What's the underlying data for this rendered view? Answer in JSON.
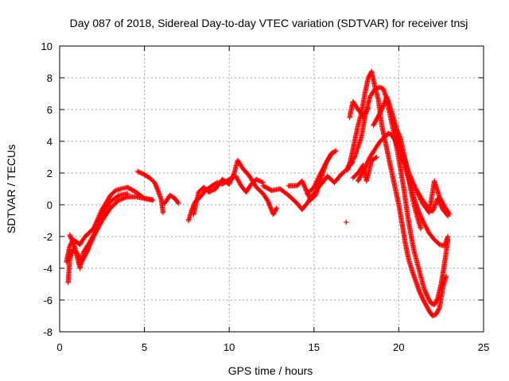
{
  "chart_data": {
    "type": "scatter",
    "title": "Day 087 of 2018, Sidereal Day-to-day VTEC variation (SDTVAR) for receiver tnsj",
    "xlabel": "GPS time / hours",
    "ylabel": "SDTVAR / TECUs",
    "xlim": [
      0,
      25
    ],
    "ylim": [
      -8,
      10
    ],
    "xticks": [
      0,
      5,
      10,
      15,
      20,
      25
    ],
    "yticks": [
      -8,
      -6,
      -4,
      -2,
      0,
      2,
      4,
      6,
      8,
      10
    ],
    "grid": true,
    "marker": "+",
    "series": [
      {
        "name": "SDTVAR",
        "color": "#ff0000",
        "tracks": [
          [
            [
              0.4,
              -3.6
            ],
            [
              0.6,
              -2.6
            ],
            [
              0.8,
              -2.2
            ],
            [
              1.2,
              -2.5
            ],
            [
              1.5,
              -2.0
            ],
            [
              2.0,
              -1.5
            ],
            [
              2.5,
              -0.3
            ],
            [
              3.0,
              0.6
            ],
            [
              3.3,
              0.9
            ],
            [
              3.6,
              1.0
            ],
            [
              4.0,
              1.1
            ],
            [
              4.5,
              0.8
            ],
            [
              5.0,
              0.4
            ],
            [
              5.5,
              0.3
            ]
          ],
          [
            [
              0.5,
              -4.9
            ],
            [
              0.6,
              -3.4
            ],
            [
              0.8,
              -2.8
            ],
            [
              1.0,
              -3.0
            ],
            [
              1.3,
              -3.6
            ],
            [
              1.6,
              -3.0
            ],
            [
              2.0,
              -2.0
            ],
            [
              2.5,
              -1.0
            ],
            [
              3.0,
              -0.2
            ],
            [
              3.5,
              0.3
            ],
            [
              4.0,
              0.5
            ],
            [
              4.5,
              0.5
            ],
            [
              5.0,
              0.4
            ],
            [
              5.5,
              0.3
            ]
          ],
          [
            [
              0.6,
              -1.9
            ],
            [
              0.9,
              -2.7
            ],
            [
              1.2,
              -4.0
            ],
            [
              1.4,
              -3.0
            ],
            [
              1.8,
              -2.3
            ],
            [
              2.2,
              -1.5
            ],
            [
              2.6,
              -0.4
            ],
            [
              3.0,
              0.2
            ],
            [
              3.5,
              0.6
            ],
            [
              4.0,
              0.7
            ]
          ],
          [
            [
              4.6,
              2.1
            ],
            [
              5.0,
              1.9
            ],
            [
              5.3,
              1.7
            ],
            [
              5.6,
              1.4
            ],
            [
              5.8,
              0.9
            ],
            [
              6.0,
              0.3
            ],
            [
              6.1,
              -0.5
            ]
          ],
          [
            [
              6.2,
              0.1
            ],
            [
              6.5,
              0.6
            ],
            [
              6.8,
              0.4
            ],
            [
              7.0,
              0.1
            ]
          ],
          [
            [
              7.6,
              -1.0
            ],
            [
              7.8,
              -0.3
            ],
            [
              8.0,
              0.2
            ],
            [
              8.3,
              0.5
            ],
            [
              8.6,
              0.9
            ],
            [
              9.0,
              1.2
            ],
            [
              9.3,
              1.4
            ],
            [
              9.6,
              1.3
            ],
            [
              10.0,
              1.6
            ],
            [
              10.4,
              1.8
            ],
            [
              10.7,
              1.2
            ],
            [
              11.0,
              0.8
            ],
            [
              11.3,
              1.3
            ],
            [
              11.6,
              1.6
            ],
            [
              12.0,
              1.4
            ]
          ],
          [
            [
              7.9,
              -0.6
            ],
            [
              8.2,
              0.8
            ],
            [
              8.5,
              1.1
            ],
            [
              8.8,
              0.8
            ],
            [
              9.2,
              1.0
            ],
            [
              9.6,
              1.6
            ],
            [
              10.0,
              1.3
            ],
            [
              10.3,
              2.0
            ],
            [
              10.5,
              2.8
            ],
            [
              10.8,
              2.3
            ],
            [
              11.2,
              1.8
            ],
            [
              11.6,
              1.1
            ],
            [
              12.0,
              0.7
            ],
            [
              12.3,
              0.2
            ],
            [
              12.6,
              -0.6
            ],
            [
              12.8,
              -0.2
            ]
          ],
          [
            [
              12.0,
              1.2
            ],
            [
              12.5,
              0.9
            ],
            [
              13.0,
              1.0
            ],
            [
              13.5,
              0.6
            ],
            [
              14.0,
              0.1
            ],
            [
              14.3,
              -0.3
            ],
            [
              14.6,
              0.1
            ],
            [
              14.9,
              0.6
            ],
            [
              15.2,
              1.0
            ],
            [
              15.5,
              1.4
            ],
            [
              15.8,
              1.8
            ],
            [
              16.2,
              1.4
            ],
            [
              16.6,
              1.9
            ],
            [
              17.0,
              2.3
            ],
            [
              17.3,
              2.7
            ]
          ],
          [
            [
              13.5,
              1.2
            ],
            [
              14.0,
              1.2
            ],
            [
              14.3,
              1.5
            ],
            [
              14.5,
              1.0
            ],
            [
              14.8,
              0.3
            ],
            [
              15.1,
              0.6
            ],
            [
              15.4,
              1.6
            ],
            [
              15.7,
              2.6
            ],
            [
              16.0,
              3.2
            ],
            [
              16.3,
              3.4
            ]
          ],
          [
            [
              14.6,
              0.7
            ],
            [
              15.0,
              1.1
            ],
            [
              15.4,
              2.0
            ],
            [
              15.8,
              2.8
            ],
            [
              16.1,
              3.3
            ]
          ],
          [
            [
              16.9,
              -1.1
            ]
          ],
          [
            [
              17.0,
              2.2
            ],
            [
              17.2,
              3.0
            ],
            [
              17.4,
              4.0
            ],
            [
              17.6,
              5.0
            ],
            [
              17.8,
              5.8
            ],
            [
              18.0,
              7.0
            ],
            [
              18.2,
              8.0
            ],
            [
              18.4,
              8.4
            ],
            [
              18.6,
              7.4
            ],
            [
              18.8,
              6.6
            ],
            [
              19.0,
              5.0
            ],
            [
              19.2,
              4.0
            ],
            [
              19.4,
              3.0
            ],
            [
              19.6,
              2.0
            ],
            [
              19.8,
              1.0
            ],
            [
              20.0,
              0.0
            ],
            [
              20.2,
              -1.2
            ],
            [
              20.4,
              -2.5
            ],
            [
              20.6,
              -3.5
            ],
            [
              20.8,
              -4.2
            ],
            [
              21.0,
              -4.8
            ],
            [
              21.2,
              -5.4
            ],
            [
              21.4,
              -5.9
            ],
            [
              21.6,
              -6.3
            ],
            [
              21.8,
              -6.7
            ],
            [
              22.0,
              -7.0
            ],
            [
              22.2,
              -6.9
            ],
            [
              22.4,
              -6.5
            ],
            [
              22.6,
              -5.2
            ],
            [
              22.8,
              -4.5
            ]
          ],
          [
            [
              17.0,
              2.4
            ],
            [
              17.4,
              3.0
            ],
            [
              17.8,
              4.3
            ],
            [
              18.0,
              5.5
            ],
            [
              18.3,
              6.8
            ],
            [
              18.6,
              7.3
            ],
            [
              18.9,
              7.4
            ],
            [
              19.1,
              7.3
            ],
            [
              19.3,
              6.6
            ],
            [
              19.5,
              5.6
            ],
            [
              19.7,
              4.6
            ],
            [
              19.9,
              3.5
            ],
            [
              20.1,
              2.3
            ],
            [
              20.3,
              1.0
            ],
            [
              20.5,
              -0.5
            ],
            [
              20.7,
              -1.8
            ],
            [
              20.9,
              -2.9
            ],
            [
              21.1,
              -3.7
            ],
            [
              21.3,
              -4.5
            ],
            [
              21.5,
              -5.3
            ],
            [
              21.7,
              -5.8
            ],
            [
              21.9,
              -6.2
            ],
            [
              22.1,
              -6.3
            ],
            [
              22.3,
              -5.9
            ],
            [
              22.5,
              -5.0
            ],
            [
              22.7,
              -3.7
            ],
            [
              22.9,
              -2.2
            ]
          ],
          [
            [
              17.6,
              1.5
            ],
            [
              18.0,
              2.3
            ],
            [
              18.3,
              3.0
            ],
            [
              18.6,
              3.5
            ],
            [
              18.9,
              4.0
            ],
            [
              19.2,
              4.3
            ],
            [
              19.4,
              4.5
            ],
            [
              19.6,
              4.4
            ],
            [
              19.8,
              4.0
            ],
            [
              20.0,
              3.5
            ],
            [
              20.3,
              2.6
            ],
            [
              20.6,
              1.6
            ],
            [
              20.9,
              0.4
            ],
            [
              21.2,
              -0.5
            ],
            [
              21.5,
              -1.2
            ],
            [
              21.8,
              -1.8
            ],
            [
              22.1,
              -2.2
            ],
            [
              22.4,
              -2.5
            ],
            [
              22.7,
              -2.6
            ],
            [
              22.9,
              -2.0
            ]
          ],
          [
            [
              18.5,
              5.0
            ],
            [
              19.0,
              6.0
            ],
            [
              19.3,
              6.8
            ],
            [
              19.6,
              5.8
            ],
            [
              19.9,
              4.7
            ],
            [
              20.1,
              4.2
            ],
            [
              20.3,
              3.2
            ],
            [
              20.5,
              2.2
            ],
            [
              20.7,
              1.0
            ],
            [
              20.9,
              0.0
            ],
            [
              21.1,
              -0.8
            ],
            [
              21.3,
              -1.5
            ]
          ],
          [
            [
              19.8,
              4.7
            ],
            [
              20.2,
              3.3
            ],
            [
              20.6,
              2.0
            ],
            [
              21.0,
              1.0
            ],
            [
              21.4,
              0.3
            ],
            [
              21.8,
              -0.3
            ],
            [
              22.0,
              -0.4
            ],
            [
              22.3,
              0.4
            ],
            [
              22.6,
              -0.3
            ],
            [
              22.9,
              -0.7
            ]
          ],
          [
            [
              21.0,
              1.0
            ],
            [
              21.4,
              0.1
            ],
            [
              21.8,
              -0.5
            ],
            [
              22.1,
              1.5
            ],
            [
              22.4,
              0.5
            ],
            [
              22.7,
              -0.1
            ],
            [
              23.0,
              -0.6
            ]
          ],
          [
            [
              17.1,
              5.5
            ],
            [
              17.3,
              6.5
            ],
            [
              17.6,
              6.0
            ],
            [
              17.9,
              5.6
            ],
            [
              18.2,
              6.1
            ]
          ],
          [
            [
              17.3,
              1.7
            ],
            [
              17.6,
              2.0
            ],
            [
              17.9,
              2.5
            ],
            [
              18.1,
              1.5
            ],
            [
              18.4,
              2.8
            ],
            [
              18.7,
              3.0
            ]
          ]
        ]
      }
    ]
  }
}
